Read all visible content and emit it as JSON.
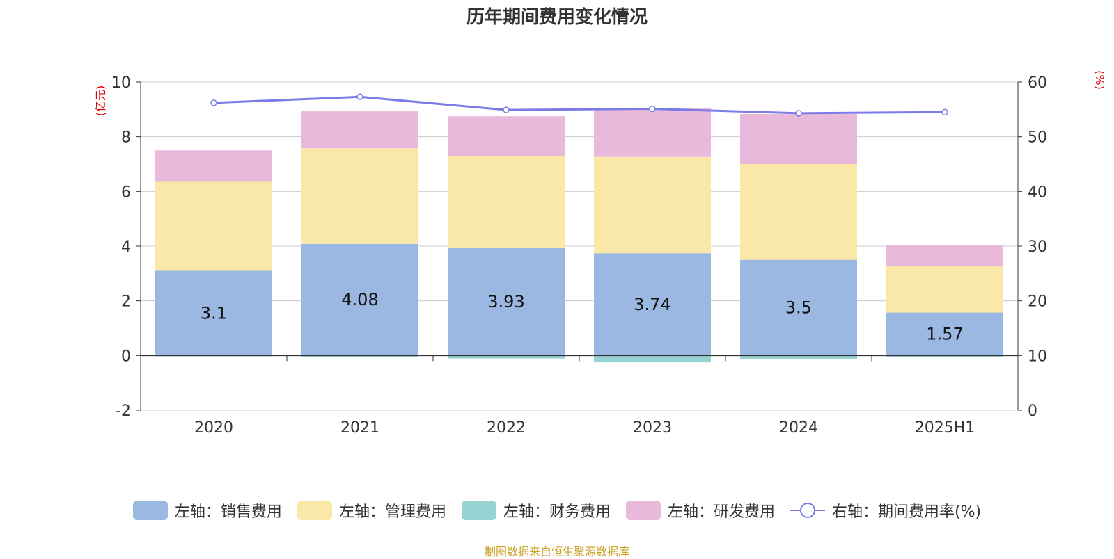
{
  "title": "历年期间费用变化情况",
  "source": "制图数据来自恒生聚源数据库",
  "chart_data": {
    "type": "bar",
    "stacked": true,
    "categories": [
      "2020",
      "2021",
      "2022",
      "2023",
      "2024",
      "2025H1"
    ],
    "left_axis": {
      "unit": "(亿元)",
      "ylim": [
        -2,
        10
      ],
      "ticks": [
        -2,
        0,
        2,
        4,
        6,
        8,
        10
      ]
    },
    "right_axis": {
      "unit": "(%)",
      "ylim": [
        0,
        60
      ],
      "ticks": [
        0,
        10,
        20,
        30,
        40,
        50,
        60
      ]
    },
    "grid": true,
    "legend_position": "bottom",
    "series": [
      {
        "name": "左轴：销售费用",
        "axis": "left",
        "type": "bar",
        "color": "#9bb8e3",
        "values": [
          3.1,
          4.08,
          3.93,
          3.74,
          3.5,
          1.57
        ],
        "labels": [
          "3.1",
          "4.08",
          "3.93",
          "3.74",
          "3.5",
          "1.57"
        ]
      },
      {
        "name": "左轴：管理费用",
        "axis": "left",
        "type": "bar",
        "color": "#f9e8a7",
        "values": [
          3.25,
          3.5,
          3.35,
          3.52,
          3.5,
          1.7
        ]
      },
      {
        "name": "左轴：财务费用",
        "axis": "left",
        "type": "bar",
        "color": "#96d4d4",
        "values": [
          -0.03,
          -0.06,
          -0.11,
          -0.25,
          -0.14,
          -0.06
        ]
      },
      {
        "name": "左轴：研发费用",
        "axis": "left",
        "type": "bar",
        "color": "#e8b9da",
        "values": [
          1.15,
          1.35,
          1.47,
          1.8,
          1.83,
          0.76
        ]
      },
      {
        "name": "右轴：期间费用率(%)",
        "axis": "right",
        "type": "line",
        "color": "#7b7be8",
        "values": [
          56.2,
          57.3,
          54.9,
          55.1,
          54.3,
          54.5
        ]
      }
    ]
  }
}
